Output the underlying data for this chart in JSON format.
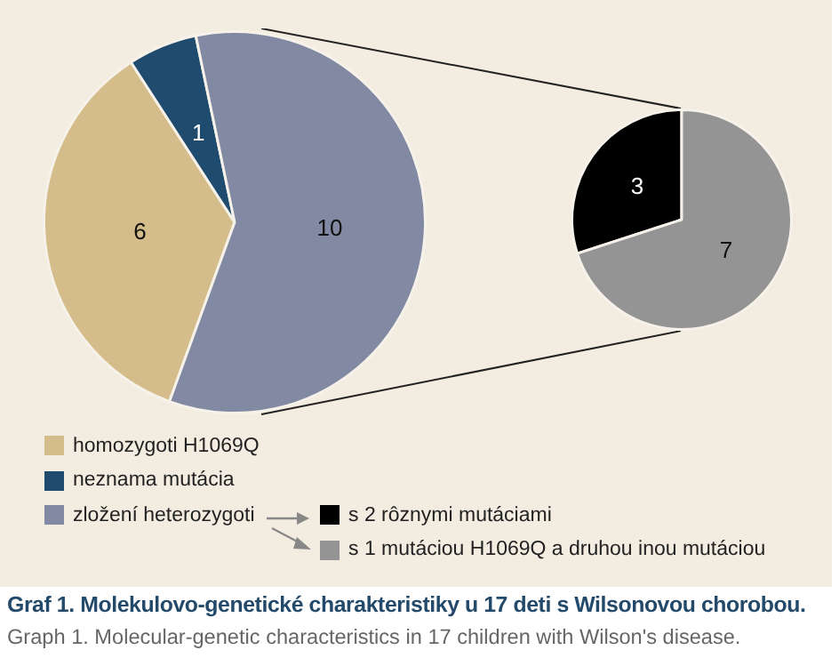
{
  "chart_data": [
    {
      "type": "pie",
      "title": "Graf 1. Molekulovo-genetické charakteristiky u 17 deti s Wilsonovou chorobou.",
      "subtitle": "Graph 1. Molecular-genetic characteristics in 17 children with Wilson's disease.",
      "categories": [
        "homozygoti H1069Q",
        "neznama mutácia",
        "zložení heterozygoti"
      ],
      "values": [
        6,
        1,
        10
      ],
      "colors": [
        "#d4bd8a",
        "#1f4b6e",
        "#8189a3"
      ],
      "data_labels": true,
      "legend": "bottom"
    },
    {
      "type": "pie",
      "categories": [
        "s 2 rôznymi mutáciami",
        "s 1 mutáciou H1069Q a druhou inou mutáciou"
      ],
      "values": [
        3,
        7
      ],
      "colors": [
        "#000000",
        "#949494"
      ],
      "data_labels": true,
      "legend": "bottom"
    }
  ]
}
